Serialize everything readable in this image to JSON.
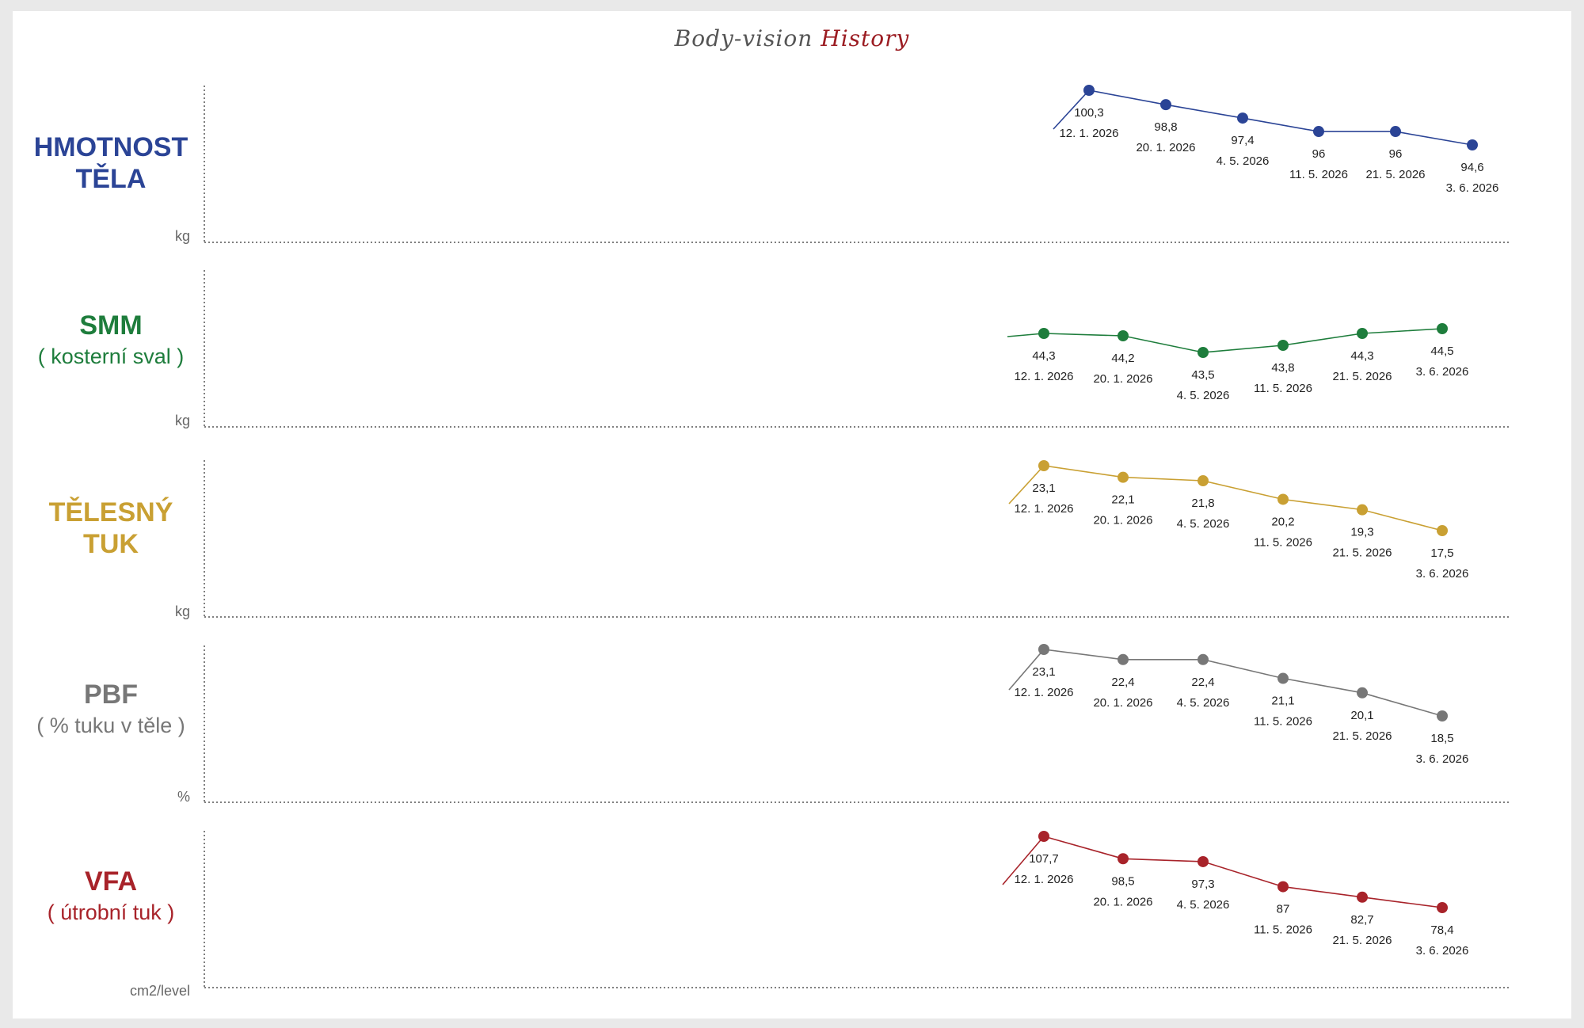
{
  "title": {
    "part1": "Body-vision",
    "part2": "History"
  },
  "chart_data": [
    {
      "type": "line",
      "key": "weight",
      "label": [
        "HMOTNOST",
        "TĚLA"
      ],
      "sublabel": "",
      "unit": "kg",
      "color": "#2b4496",
      "categories": [
        "12. 1. 2026",
        "20. 1. 2026",
        "4. 5. 2026",
        "11. 5. 2026",
        "21. 5. 2026",
        "3. 6. 2026"
      ],
      "labels": [
        "100,3",
        "98,8",
        "97,4",
        "96",
        "96",
        "94,6"
      ],
      "values": [
        100.3,
        98.8,
        97.4,
        96,
        96,
        94.6
      ]
    },
    {
      "type": "line",
      "key": "smm",
      "label": [
        "SMM"
      ],
      "sublabel": "( kosterní sval )",
      "unit": "kg",
      "color": "#1e7d3c",
      "categories": [
        "12. 1. 2026",
        "20. 1. 2026",
        "4. 5. 2026",
        "11. 5. 2026",
        "21. 5. 2026",
        "3. 6. 2026"
      ],
      "labels": [
        "44,3",
        "44,2",
        "43,5",
        "43,8",
        "44,3",
        "44,5"
      ],
      "values": [
        44.3,
        44.2,
        43.5,
        43.8,
        44.3,
        44.5
      ]
    },
    {
      "type": "line",
      "key": "fat",
      "label": [
        "TĚLESNÝ",
        "TUK"
      ],
      "sublabel": "",
      "unit": "kg",
      "color": "#c9a033",
      "categories": [
        "12. 1. 2026",
        "20. 1. 2026",
        "4. 5. 2026",
        "11. 5. 2026",
        "21. 5. 2026",
        "3. 6. 2026"
      ],
      "labels": [
        "23,1",
        "22,1",
        "21,8",
        "20,2",
        "19,3",
        "17,5"
      ],
      "values": [
        23.1,
        22.1,
        21.8,
        20.2,
        19.3,
        17.5
      ]
    },
    {
      "type": "line",
      "key": "pbf",
      "label": [
        "PBF"
      ],
      "sublabel": "( % tuku v těle )",
      "unit": "%",
      "color": "#777777",
      "categories": [
        "12. 1. 2026",
        "20. 1. 2026",
        "4. 5. 2026",
        "11. 5. 2026",
        "21. 5. 2026",
        "3. 6. 2026"
      ],
      "labels": [
        "23,1",
        "22,4",
        "22,4",
        "21,1",
        "20,1",
        "18,5"
      ],
      "values": [
        23.1,
        22.4,
        22.4,
        21.1,
        20.1,
        18.5
      ]
    },
    {
      "type": "line",
      "key": "vfa",
      "label": [
        "VFA"
      ],
      "sublabel": "( útrobní tuk )",
      "unit": "cm2/level",
      "color": "#a8232a",
      "categories": [
        "12. 1. 2026",
        "20. 1. 2026",
        "4. 5. 2026",
        "11. 5. 2026",
        "21. 5. 2026",
        "3. 6. 2026"
      ],
      "labels": [
        "107,7",
        "98,5",
        "97,3",
        "87",
        "82,7",
        "78,4"
      ],
      "values": [
        107.7,
        98.5,
        97.3,
        87,
        82.7,
        78.4
      ]
    }
  ]
}
